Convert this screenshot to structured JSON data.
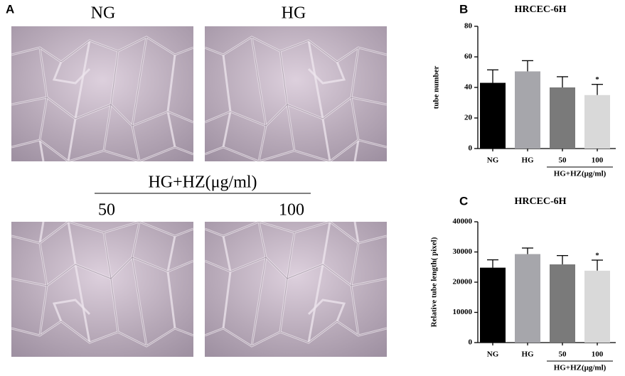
{
  "panel_a": {
    "label": "A",
    "images": [
      {
        "label": "NG"
      },
      {
        "label": "HG"
      },
      {
        "label": "50"
      },
      {
        "label": "100"
      }
    ],
    "group_label": "HG+HZ(μg/ml)"
  },
  "chart_data": [
    {
      "type": "bar",
      "panel_label": "B",
      "title": "HRCEC-6H",
      "y_label": "tube number",
      "categories": [
        "NG",
        "HG",
        "50",
        "100"
      ],
      "values": [
        43,
        50.5,
        40,
        35
      ],
      "errors": [
        8.5,
        7,
        7,
        7
      ],
      "colors": [
        "#000000",
        "#a6a6ab",
        "#7a7a7a",
        "#d9d9d9"
      ],
      "group_label": "HG+HZ(μg/ml)",
      "annotation": "*",
      "ylim": [
        0,
        80
      ],
      "yticks": [
        0,
        20,
        40,
        60,
        80
      ]
    },
    {
      "type": "bar",
      "panel_label": "C",
      "title": "HRCEC-6H",
      "y_label": "Relative tube length( pixel)",
      "categories": [
        "NG",
        "HG",
        "50",
        "100"
      ],
      "values": [
        24800,
        29300,
        25900,
        23800
      ],
      "errors": [
        2600,
        2000,
        2900,
        3500
      ],
      "colors": [
        "#000000",
        "#a6a6ab",
        "#7a7a7a",
        "#d9d9d9"
      ],
      "group_label": "HG+HZ(μg/ml)",
      "annotation": "*",
      "ylim": [
        0,
        40000
      ],
      "yticks": [
        0,
        10000,
        20000,
        30000,
        40000
      ]
    }
  ]
}
